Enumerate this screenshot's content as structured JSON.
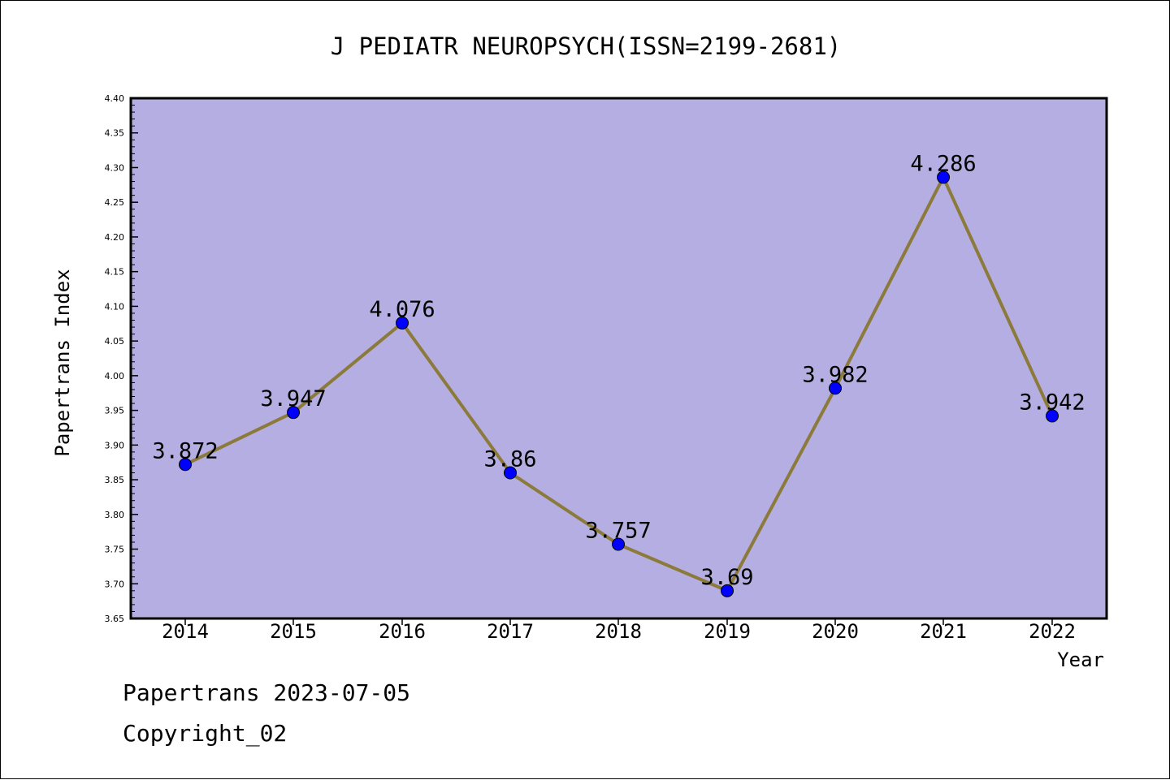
{
  "chart_data": {
    "type": "line",
    "title": "J PEDIATR NEUROPSYCH(ISSN=2199-2681)",
    "xlabel": "Year",
    "ylabel": "Papertrans Index",
    "categories": [
      "2014",
      "2015",
      "2016",
      "2017",
      "2018",
      "2019",
      "2020",
      "2021",
      "2022"
    ],
    "series": [
      {
        "values": [
          3.872,
          3.947,
          4.076,
          3.86,
          3.757,
          3.69,
          3.982,
          4.286,
          3.942
        ],
        "labels": [
          "3.872",
          "3.947",
          "4.076",
          "3.86",
          "3.757",
          "3.69",
          "3.982",
          "4.286",
          "3.942"
        ]
      }
    ],
    "ylim": [
      3.65,
      4.4
    ],
    "yticks": [
      "3.65",
      "3.70",
      "3.75",
      "3.80",
      "3.85",
      "3.90",
      "3.95",
      "4.00",
      "4.05",
      "4.10",
      "4.15",
      "4.20",
      "4.25",
      "4.30",
      "4.35",
      "4.40"
    ],
    "grid": false,
    "colors": {
      "plot_background": "#b4aee2",
      "line": "#8b7a3a",
      "marker": "#0000ff"
    }
  },
  "footer": {
    "line1": "Papertrans 2023-07-05",
    "line2": "Copyright_02"
  }
}
